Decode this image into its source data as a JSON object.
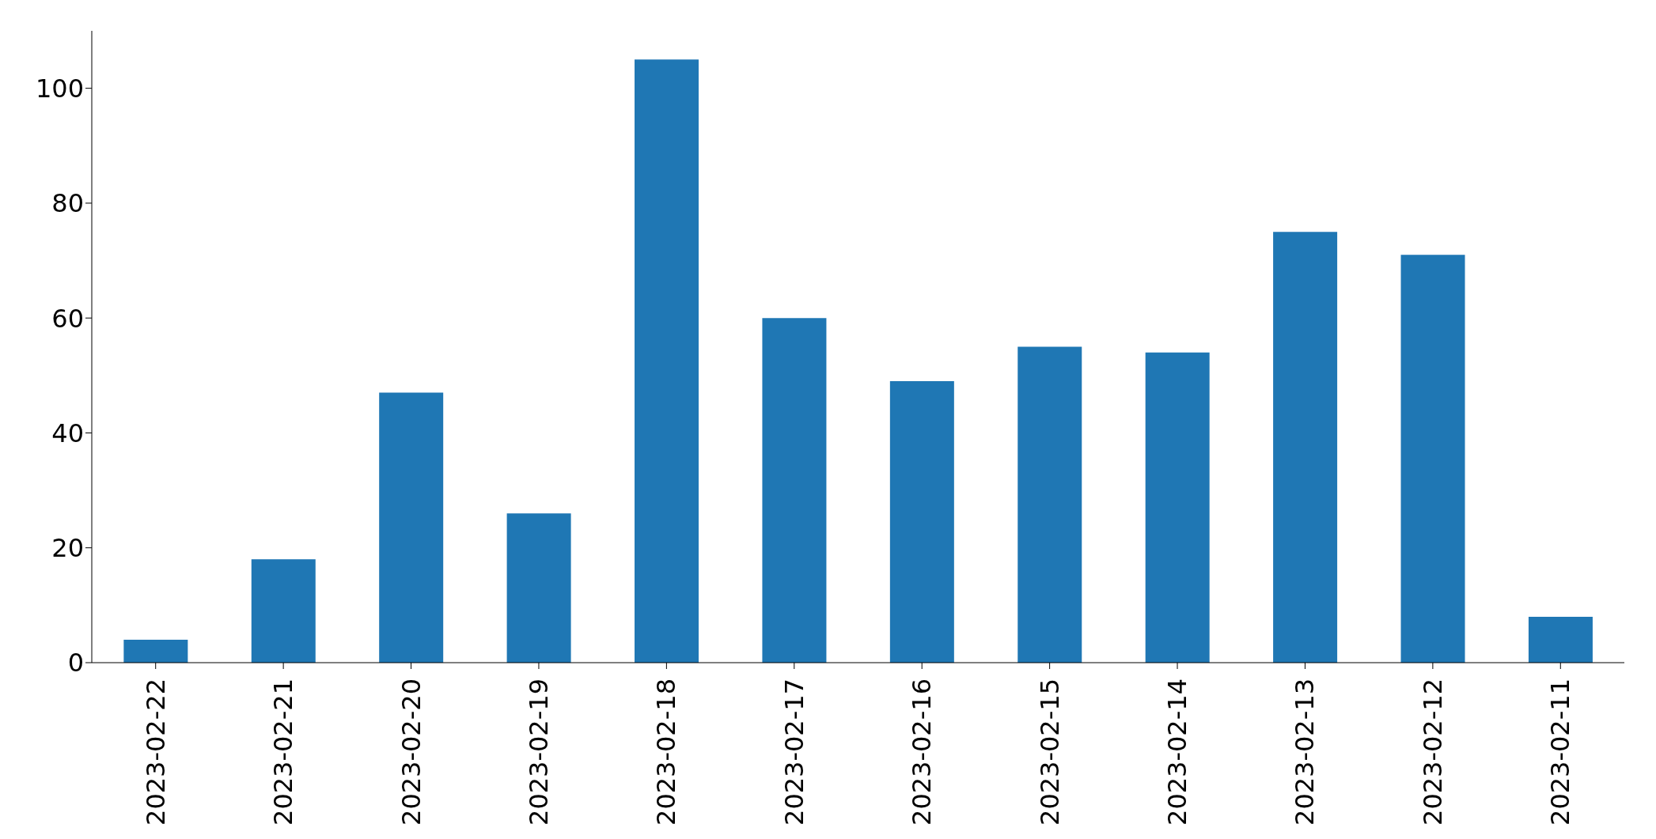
{
  "chart_data": {
    "type": "bar",
    "categories": [
      "2023-02-22",
      "2023-02-21",
      "2023-02-20",
      "2023-02-19",
      "2023-02-18",
      "2023-02-17",
      "2023-02-16",
      "2023-02-15",
      "2023-02-14",
      "2023-02-13",
      "2023-02-12",
      "2023-02-11"
    ],
    "values": [
      4,
      18,
      47,
      26,
      105,
      60,
      49,
      55,
      54,
      75,
      71,
      8
    ],
    "color": "#1f77b4",
    "ylim": [
      0,
      110
    ],
    "yticks": [
      0,
      20,
      40,
      60,
      80,
      100
    ],
    "grid": false,
    "legend": false
  }
}
